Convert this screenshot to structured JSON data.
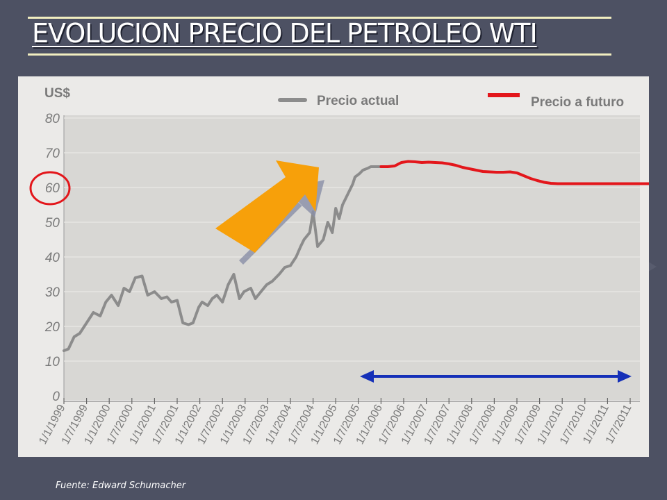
{
  "slide": {
    "title": "EVOLUCION PRECIO DEL PETROLEO WTI",
    "source": "Fuente: Edward Schumacher"
  },
  "colors": {
    "background": "#4d5163",
    "actual_line": "#8c8c8c",
    "future_line": "#e3161b",
    "arrow": "#f7a00a",
    "range_arrow": "#1530b8",
    "circle": "#e3161b"
  },
  "chart_data": {
    "type": "line",
    "unit_label": "US$",
    "ylim": [
      0,
      80
    ],
    "yticks": [
      0,
      10,
      20,
      30,
      40,
      50,
      60,
      70,
      80
    ],
    "circled_tick": 60,
    "xticks": [
      "1/1/1999",
      "1/7/1999",
      "1/1/2000",
      "1/7/2000",
      "1/1/2001",
      "1/7/2001",
      "1/1/2002",
      "1/7/2002",
      "1/1/2003",
      "1/7/2003",
      "1/1/2004",
      "1/7/2004",
      "1/1/2005",
      "1/7/2005",
      "1/1/2006",
      "1/7/2006",
      "1/1/2007",
      "1/7/2007",
      "1/1/2008",
      "1/7/2008",
      "1/1/2009",
      "1/7/2009",
      "1/1/2010",
      "1/7/2010",
      "1/1/2011",
      "1/7/2011"
    ],
    "legend": [
      "Precio actual",
      "Precio a futuro"
    ],
    "series": [
      {
        "name": "Precio actual",
        "x": [
          0,
          0.2,
          0.45,
          0.7,
          1,
          1.3,
          1.6,
          1.85,
          2.1,
          2.4,
          2.65,
          2.9,
          3.15,
          3.45,
          3.7,
          4,
          4.3,
          4.55,
          4.75,
          5,
          5.25,
          5.5,
          5.7,
          5.95,
          6.1,
          6.35,
          6.55,
          6.75,
          7,
          7.25,
          7.5,
          7.75,
          7.95,
          8.25,
          8.45,
          8.7,
          8.95,
          9.2,
          9.5,
          9.75,
          10,
          10.25,
          10.45,
          10.6,
          10.85,
          11,
          11.2,
          11.45,
          11.65,
          11.85,
          12,
          12.15,
          12.3,
          12.45,
          12.6,
          12.75,
          12.85,
          13.05,
          13.2,
          13.4,
          13.55,
          13.7,
          13.85,
          14
        ],
        "y": [
          13,
          13.5,
          17,
          18,
          21,
          24,
          23,
          27,
          29,
          26,
          31,
          30,
          34,
          34.5,
          29,
          30,
          28,
          28.5,
          27,
          27.5,
          21,
          20.5,
          21,
          25.5,
          27,
          26,
          28,
          29,
          27,
          32,
          35,
          28,
          30,
          31,
          28,
          30,
          32,
          33,
          35,
          37,
          37.5,
          40,
          43,
          45,
          47,
          53,
          43,
          45,
          50,
          47,
          54,
          51,
          55,
          57,
          59,
          61,
          63,
          64,
          65,
          65.5,
          66,
          66,
          66,
          66
        ]
      },
      {
        "name": "Precio a futuro",
        "x": [
          14,
          14.3,
          14.6,
          14.9,
          15.2,
          15.5,
          15.8,
          16.1,
          16.4,
          16.7,
          17,
          17.3,
          17.6,
          17.9,
          18.2,
          18.5,
          18.8,
          19.1,
          19.4,
          19.7,
          20,
          20.3,
          20.6,
          20.9,
          21.2,
          21.5,
          21.8,
          22.1,
          22.4,
          22.7,
          23,
          23.3,
          23.6,
          23.9,
          24.2,
          24.5,
          24.8,
          25.1,
          25.4,
          25.7,
          26
        ],
        "y": [
          66,
          66,
          66.2,
          67.2,
          67.5,
          67.4,
          67.2,
          67.3,
          67.2,
          67.1,
          66.8,
          66.4,
          65.8,
          65.4,
          65,
          64.6,
          64.5,
          64.4,
          64.4,
          64.5,
          64.2,
          63.4,
          62.6,
          62,
          61.5,
          61.2,
          61.1,
          61.1,
          61.1,
          61.1,
          61.1,
          61.1,
          61.1,
          61.1,
          61.1,
          61.1,
          61.1,
          61.1,
          61.1,
          61.1,
          61.1
        ]
      }
    ]
  }
}
